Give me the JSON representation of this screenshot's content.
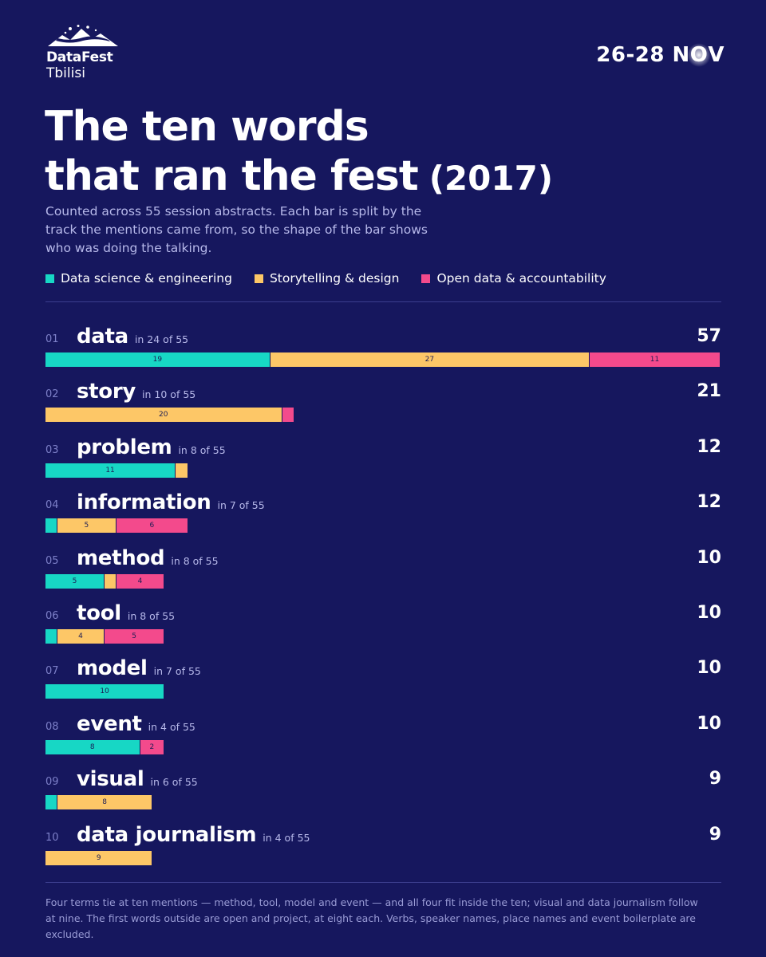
{
  "brand": {
    "name": "DataFest",
    "city": "Tbilisi"
  },
  "dates": {
    "prefix": "26-28 N",
    "glow_letter": "O",
    "suffix": "V"
  },
  "header": {
    "title_line1": "The ten words",
    "title_line2": "that ran the fest",
    "title_year": "(2017)",
    "subtitle": "Counted across 55 session abstracts. Each bar is split by the track the mentions came from, so the shape of the bar shows who was doing the talking."
  },
  "colors": {
    "background": "#16175e",
    "track1": "#17d7c5",
    "track2": "#fdc767",
    "track3": "#f34a8c"
  },
  "footnote": "Four terms tie at ten mentions — method, tool, model and event — and all four fit inside the ten; visual and data journalism follow at nine. The first words outside are open and project, at eight each. Verbs, speaker names, place names and event boilerplate are excluded.",
  "chart_data": {
    "type": "bar",
    "orientation": "horizontal-stacked",
    "max_value": 57,
    "legend": [
      {
        "name": "Data science & engineering",
        "color": "#17d7c5"
      },
      {
        "name": "Storytelling & design",
        "color": "#fdc767"
      },
      {
        "name": "Open data & accountability",
        "color": "#f34a8c"
      }
    ],
    "rows": [
      {
        "rank": "01",
        "word": "data",
        "docs": "in 24 of 55",
        "total": 57,
        "segments": [
          19,
          27,
          11
        ]
      },
      {
        "rank": "02",
        "word": "story",
        "docs": "in 10 of 55",
        "total": 21,
        "segments": [
          0,
          20,
          1
        ]
      },
      {
        "rank": "03",
        "word": "problem",
        "docs": "in 8 of 55",
        "total": 12,
        "segments": [
          11,
          1,
          0
        ]
      },
      {
        "rank": "04",
        "word": "information",
        "docs": "in 7 of 55",
        "total": 12,
        "segments": [
          1,
          5,
          6
        ]
      },
      {
        "rank": "05",
        "word": "method",
        "docs": "in 8 of 55",
        "total": 10,
        "segments": [
          5,
          1,
          4
        ]
      },
      {
        "rank": "06",
        "word": "tool",
        "docs": "in 8 of 55",
        "total": 10,
        "segments": [
          1,
          4,
          5
        ]
      },
      {
        "rank": "07",
        "word": "model",
        "docs": "in 7 of 55",
        "total": 10,
        "segments": [
          10,
          0,
          0
        ]
      },
      {
        "rank": "08",
        "word": "event",
        "docs": "in 4 of 55",
        "total": 10,
        "segments": [
          8,
          0,
          2
        ]
      },
      {
        "rank": "09",
        "word": "visual",
        "docs": "in 6 of 55",
        "total": 9,
        "segments": [
          1,
          8,
          0
        ]
      },
      {
        "rank": "10",
        "word": "data journalism",
        "docs": "in 4 of 55",
        "total": 9,
        "segments": [
          0,
          9,
          0
        ]
      }
    ]
  }
}
